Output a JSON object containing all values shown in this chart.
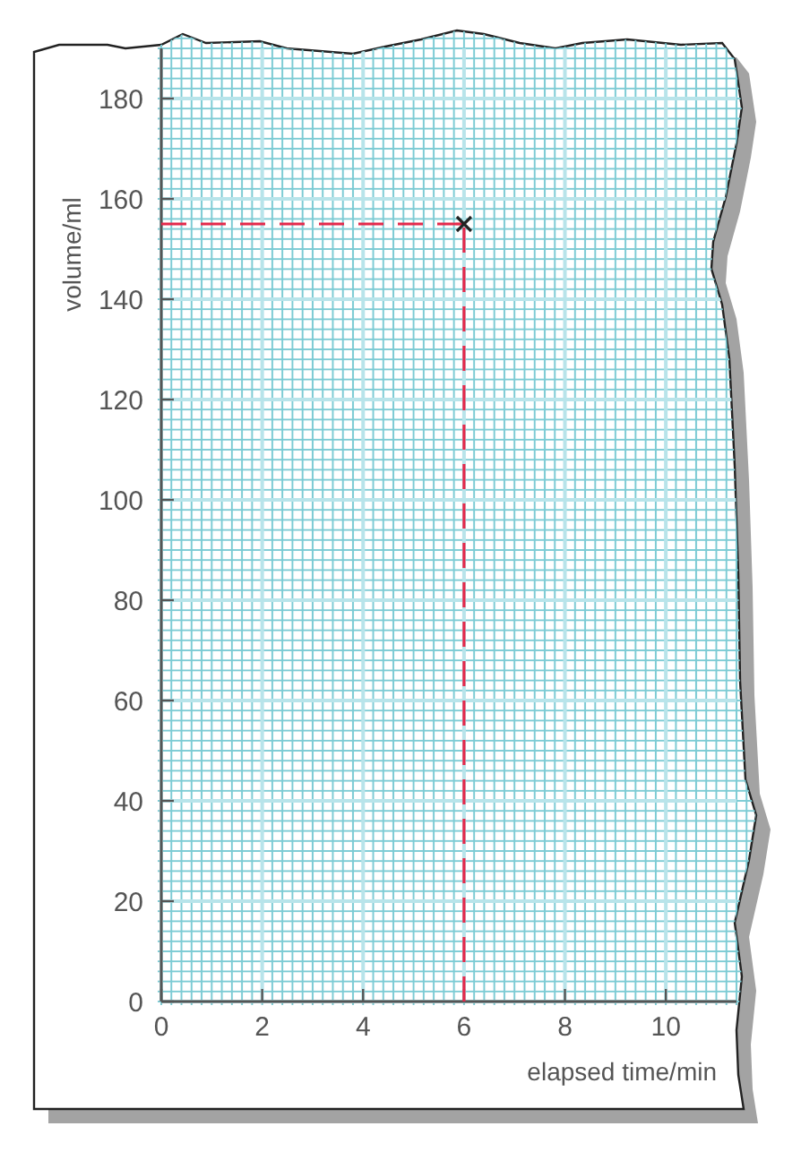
{
  "chart_data": {
    "type": "scatter",
    "xlabel": "elapsed time/min",
    "ylabel": "volume/ml",
    "xlim": [
      0,
      11.4
    ],
    "ylim": [
      0,
      190
    ],
    "xticks": [
      0,
      2,
      4,
      6,
      8,
      10
    ],
    "yticks": [
      0,
      20,
      40,
      60,
      80,
      100,
      120,
      140,
      160,
      180
    ],
    "grid": true,
    "ref_lines": [
      {
        "axis": "y",
        "value": 155,
        "color": "#e4294b",
        "line_style": "dashed"
      },
      {
        "axis": "x",
        "value": 6,
        "color": "#e4294b",
        "line_style": "dashed"
      }
    ],
    "series": [
      {
        "x": [
          6
        ],
        "values": [
          155
        ],
        "color": "#222222",
        "marker": "cross"
      }
    ]
  }
}
